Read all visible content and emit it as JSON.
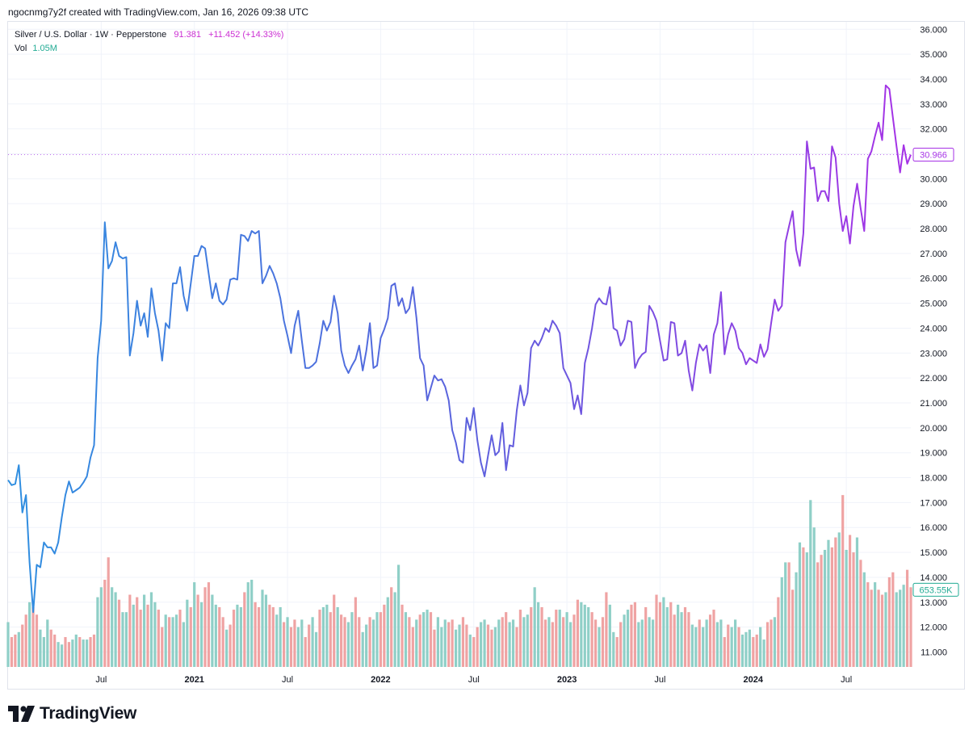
{
  "header": {
    "credit": "ngocnmg7y2f created with TradingView.com, Jan 16, 2026 09:38 UTC"
  },
  "legend": {
    "symbol": "Silver / U.S. Dollar · 1W · Pepperstone",
    "price": "91.381",
    "change": "+11.452 (+14.33%)",
    "vol_label": "Vol",
    "vol_value": "1.05M"
  },
  "colors": {
    "line_start": "#2f8fe0",
    "line_mid": "#5b63dd",
    "line_end": "#a632e6",
    "vol_up": "#8fcfc7",
    "vol_down": "#efa3a3",
    "grid": "#f0f3fa",
    "price_label": "#a632e6",
    "vol_label": "#22ab94"
  },
  "brand": {
    "name": "TradingView",
    "icon": "tradingview-logo-icon"
  },
  "chart_data": {
    "type": "line",
    "title": "Silver / U.S. Dollar · 1W · Pepperstone",
    "xlabel": "",
    "ylabel": "",
    "ylim": [
      10.4,
      36.3
    ],
    "y_ticks": [
      "36.000",
      "35.000",
      "34.000",
      "33.000",
      "32.000",
      "31.000",
      "30.000",
      "29.000",
      "28.000",
      "27.000",
      "26.000",
      "25.000",
      "24.000",
      "23.000",
      "22.000",
      "21.000",
      "20.000",
      "19.000",
      "18.000",
      "17.000",
      "16.000",
      "15.000",
      "14.000",
      "13.000",
      "12.000",
      "11.000"
    ],
    "x_ticks": [
      {
        "label": "Jul",
        "week": 26,
        "bold": false
      },
      {
        "label": "2021",
        "week": 52,
        "bold": true
      },
      {
        "label": "Jul",
        "week": 78,
        "bold": false
      },
      {
        "label": "2022",
        "week": 104,
        "bold": true
      },
      {
        "label": "Jul",
        "week": 130,
        "bold": false
      },
      {
        "label": "2023",
        "week": 156,
        "bold": true
      },
      {
        "label": "Jul",
        "week": 182,
        "bold": false
      },
      {
        "label": "2024",
        "week": 208,
        "bold": true
      },
      {
        "label": "Jul",
        "week": 234,
        "bold": false
      }
    ],
    "last_price_label": "30.966",
    "last_price": 30.966,
    "volume_label": "653.55K",
    "volume_label_level": 13.5,
    "series": [
      {
        "name": "Silver / U.S. Dollar",
        "values": [
          17.9,
          17.7,
          17.75,
          18.5,
          16.6,
          17.3,
          14.6,
          12.6,
          14.5,
          14.4,
          15.4,
          15.2,
          15.2,
          14.95,
          15.4,
          16.4,
          17.3,
          17.85,
          17.4,
          17.5,
          17.6,
          17.8,
          18.05,
          18.8,
          19.3,
          22.8,
          24.3,
          28.25,
          26.4,
          26.7,
          27.45,
          26.9,
          26.8,
          26.85,
          22.9,
          23.8,
          25.1,
          24.1,
          24.6,
          23.65,
          25.6,
          24.6,
          23.9,
          22.7,
          24.2,
          24.0,
          25.8,
          25.8,
          26.45,
          25.3,
          24.7,
          25.8,
          26.9,
          26.9,
          27.3,
          27.2,
          26.2,
          25.2,
          25.8,
          25.1,
          24.95,
          25.15,
          25.95,
          26.0,
          25.95,
          27.75,
          27.7,
          27.5,
          27.9,
          27.8,
          27.9,
          25.8,
          26.1,
          26.5,
          26.2,
          25.8,
          25.2,
          24.3,
          23.7,
          23.0,
          24.1,
          24.7,
          23.5,
          22.4,
          22.4,
          22.5,
          22.65,
          23.4,
          24.3,
          23.9,
          24.25,
          25.3,
          24.6,
          23.1,
          22.5,
          22.2,
          22.5,
          22.75,
          23.3,
          22.3,
          23.1,
          24.2,
          22.4,
          22.5,
          23.6,
          23.95,
          24.4,
          25.7,
          25.8,
          24.9,
          25.2,
          24.6,
          24.8,
          25.65,
          24.4,
          22.8,
          22.5,
          21.1,
          21.6,
          22.1,
          21.9,
          21.95,
          21.65,
          21.1,
          19.9,
          19.4,
          18.7,
          18.6,
          20.4,
          19.9,
          20.8,
          19.5,
          18.6,
          18.05,
          18.9,
          19.7,
          18.9,
          19.05,
          20.2,
          18.3,
          19.3,
          19.25,
          20.7,
          21.7,
          20.9,
          21.4,
          23.2,
          23.5,
          23.3,
          23.6,
          24.0,
          23.85,
          24.3,
          24.1,
          23.8,
          22.4,
          22.1,
          21.8,
          20.75,
          21.3,
          20.55,
          22.6,
          23.2,
          24.0,
          24.95,
          25.2,
          25.0,
          24.95,
          25.65,
          24.0,
          23.9,
          23.3,
          23.55,
          24.3,
          24.25,
          22.4,
          22.75,
          22.95,
          23.05,
          24.9,
          24.65,
          24.3,
          23.5,
          22.7,
          22.75,
          24.25,
          24.2,
          22.9,
          23.0,
          23.5,
          22.3,
          21.5,
          22.6,
          23.35,
          23.1,
          23.3,
          22.2,
          23.75,
          24.2,
          25.45,
          22.95,
          23.75,
          24.2,
          23.9,
          23.2,
          23.0,
          22.55,
          22.8,
          22.7,
          22.6,
          23.35,
          22.85,
          23.15,
          24.2,
          25.15,
          24.7,
          24.9,
          27.45,
          28.1,
          28.7,
          27.15,
          26.5,
          27.8,
          31.5,
          30.4,
          30.45,
          29.1,
          29.5,
          29.5,
          29.1,
          31.3,
          30.85,
          29.0,
          27.9,
          28.5,
          27.4,
          28.9,
          29.8,
          28.8,
          27.9,
          30.8,
          31.1,
          31.7,
          32.25,
          31.55,
          33.75,
          33.6,
          32.45,
          31.3,
          30.25,
          31.35,
          30.6,
          30.966
        ]
      }
    ],
    "volume": {
      "unit": "index",
      "values": [
        12.2,
        11.6,
        11.7,
        11.8,
        12.1,
        12.5,
        13.0,
        12.8,
        12.5,
        11.9,
        11.6,
        12.3,
        11.9,
        11.7,
        11.4,
        11.3,
        11.6,
        11.4,
        11.5,
        11.7,
        11.6,
        11.5,
        11.5,
        11.6,
        11.7,
        13.2,
        13.6,
        13.9,
        14.8,
        13.6,
        13.4,
        13.1,
        12.6,
        12.6,
        13.3,
        12.9,
        13.2,
        12.7,
        13.3,
        12.9,
        13.4,
        13.0,
        12.7,
        12.0,
        12.5,
        12.4,
        12.4,
        12.5,
        12.7,
        12.2,
        13.1,
        12.8,
        13.8,
        13.3,
        13.0,
        13.6,
        13.8,
        13.3,
        12.9,
        12.8,
        12.4,
        11.9,
        12.1,
        12.7,
        12.9,
        12.8,
        13.4,
        13.8,
        13.9,
        13.0,
        12.8,
        13.5,
        13.3,
        12.9,
        12.8,
        12.5,
        12.8,
        12.2,
        12.4,
        12.0,
        12.3,
        12.0,
        12.3,
        11.6,
        12.1,
        12.4,
        11.8,
        12.7,
        12.8,
        12.9,
        12.6,
        13.3,
        12.8,
        12.5,
        12.4,
        12.2,
        12.6,
        13.2,
        12.4,
        11.8,
        12.1,
        12.4,
        12.3,
        12.6,
        12.6,
        12.9,
        13.2,
        13.6,
        13.4,
        14.5,
        12.9,
        12.6,
        12.4,
        12.0,
        12.3,
        12.5,
        12.6,
        12.7,
        12.6,
        11.9,
        12.4,
        12.0,
        12.3,
        12.2,
        12.3,
        11.9,
        12.1,
        12.4,
        12.1,
        11.7,
        11.6,
        12.0,
        12.2,
        12.3,
        12.1,
        11.9,
        12.0,
        12.3,
        12.4,
        12.6,
        12.2,
        12.3,
        12.0,
        12.7,
        12.4,
        12.5,
        12.8,
        13.6,
        13.0,
        12.8,
        12.3,
        12.4,
        12.2,
        12.7,
        12.7,
        12.4,
        12.6,
        12.2,
        12.5,
        13.1,
        13.0,
        12.9,
        12.8,
        12.6,
        12.3,
        12.0,
        12.4,
        13.4,
        12.9,
        11.8,
        11.6,
        12.2,
        12.5,
        12.7,
        12.9,
        13.0,
        12.2,
        12.3,
        12.8,
        12.4,
        12.3,
        13.3,
        13.0,
        13.2,
        12.8,
        13.0,
        12.5,
        12.9,
        12.6,
        12.8,
        12.6,
        12.1,
        12.0,
        12.3,
        12.0,
        12.3,
        12.5,
        12.7,
        12.2,
        12.3,
        11.6,
        12.1,
        12.0,
        12.3,
        12.0,
        11.7,
        11.8,
        11.9,
        11.6,
        11.7,
        12.0,
        11.5,
        12.2,
        12.3,
        12.4,
        13.2,
        14.0,
        14.6,
        14.6,
        13.5,
        14.2,
        15.4,
        15.2,
        15.0,
        17.1,
        16.0,
        14.6,
        14.9,
        15.1,
        15.5,
        15.2,
        15.6,
        15.8,
        17.3,
        15.1,
        15.7,
        15.0,
        15.6,
        14.7,
        14.2,
        13.8,
        13.5,
        13.8,
        13.5,
        13.3,
        13.4,
        14.0,
        14.2,
        13.4,
        13.5,
        13.7,
        14.3,
        13.6,
        13.4,
        13.1,
        12.8
      ],
      "up_down": "udduddudduuudduudduuduudduudduuduududduduudduduuduudududduuddudduuduudduudduududduudduuduuddudduudduuduudduduududduduudduuudduuddudduudduudduudduuduuddudduduudduuuddudduudduudduuduudduudduudduuduudduudduuduuudduudduduudduuduuudduuddududdud"
    }
  }
}
